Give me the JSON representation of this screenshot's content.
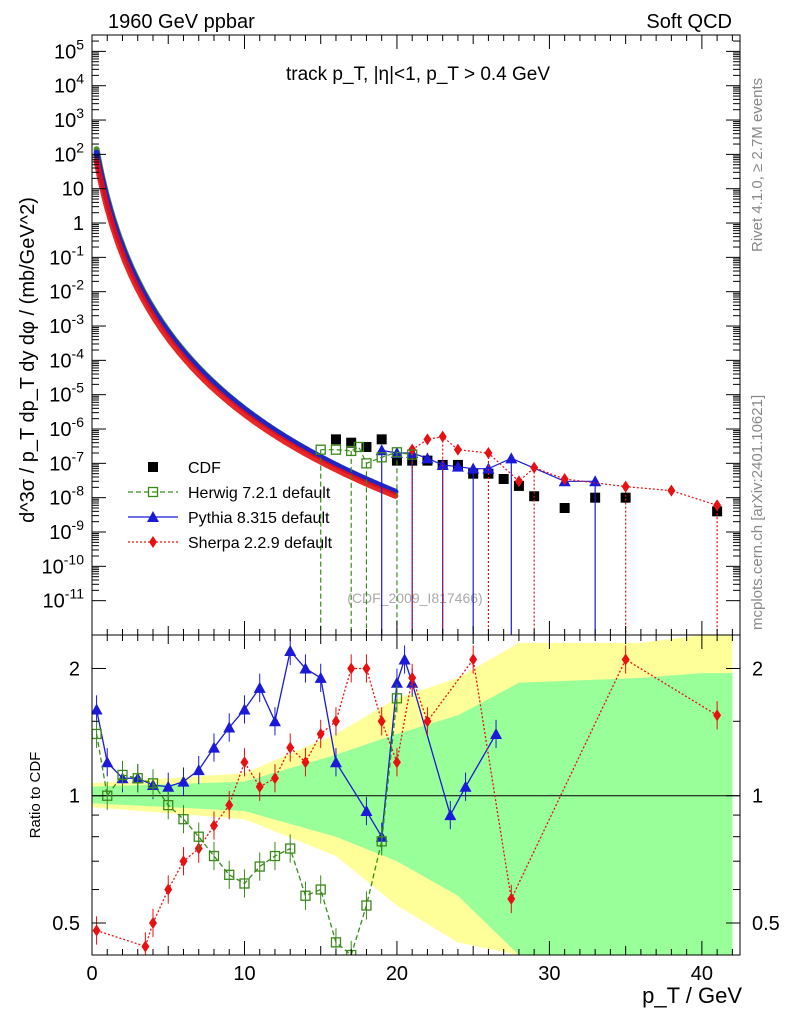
{
  "header": {
    "left": "1960 GeV ppbar",
    "right": "Soft QCD"
  },
  "side_labels": {
    "rivet": "Rivet 4.1.0, ≥ 2.7M events",
    "site": "mcplots.cern.ch [arXiv:2401.10621]"
  },
  "watermark": "(CDF_2009_I817466)",
  "chart_data": [
    {
      "type": "scatter",
      "title": "track p_T, |η|<1, p_T > 0.4 GeV",
      "xlabel": "p_T / GeV",
      "ylabel": "d^3σ / p_T dp_T dy dφ / (mb/GeV^2)",
      "xlim": [
        0,
        42.5
      ],
      "ylim": [
        1e-12,
        300000.0
      ],
      "yscale": "log",
      "ytick_labels": [
        "10^5",
        "10^4",
        "10^3",
        "10^2",
        "10",
        "1",
        "10^-1",
        "10^-2",
        "10^-3",
        "10^-4",
        "10^-5",
        "10^-6",
        "10^-7",
        "10^-8",
        "10^-9",
        "10^-10",
        "10^-11"
      ],
      "legend": [
        {
          "name": "CDF",
          "color": "#000000",
          "marker": "square-filled"
        },
        {
          "name": "Herwig 7.2.1 default",
          "color": "#3a8a1a",
          "marker": "square-open",
          "line": "dashed"
        },
        {
          "name": "Pythia 8.315 default",
          "color": "#1a1ad8",
          "marker": "triangle",
          "line": "solid"
        },
        {
          "name": "Sherpa 2.2.9 default",
          "color": "#e81010",
          "marker": "diamond",
          "line": "dotted"
        }
      ],
      "series": [
        {
          "name": "CDF",
          "x": [
            16,
            17,
            18,
            19,
            20,
            21,
            22,
            23,
            24,
            25,
            26,
            27,
            28,
            29,
            31,
            33,
            35,
            41
          ],
          "y": [
            5e-07,
            4e-07,
            3e-07,
            5e-07,
            1.2e-07,
            1.2e-07,
            1.2e-07,
            9e-08,
            9e-08,
            5e-08,
            5e-08,
            3.5e-08,
            2.2e-08,
            1.1e-08,
            5e-09,
            1e-08,
            1e-08,
            4e-09
          ]
        },
        {
          "name": "Pythia 8.315 default",
          "x": [
            19,
            20,
            21,
            22,
            23,
            24,
            25,
            26,
            27.5,
            31,
            33
          ],
          "y": [
            2.4e-07,
            2e-07,
            2e-07,
            1.4e-07,
            9e-08,
            8e-08,
            7e-08,
            7e-08,
            1.4e-07,
            3e-08,
            3e-08
          ]
        },
        {
          "name": "Sherpa 2.2.9 default",
          "x": [
            21,
            22,
            23,
            24,
            26,
            28,
            29,
            31,
            35,
            38,
            41
          ],
          "y": [
            2.5e-07,
            5e-07,
            6e-07,
            2.5e-07,
            2e-07,
            3e-08,
            7.5e-08,
            3.5e-08,
            2.1e-08,
            1.6e-08,
            6e-09
          ]
        },
        {
          "name": "Herwig 7.2.1 default",
          "x": [
            15,
            16,
            17,
            17.5,
            18,
            19,
            20,
            21
          ],
          "y": [
            2.5e-07,
            2.5e-07,
            2.3e-07,
            3e-07,
            1e-07,
            1.5e-07,
            2.1e-07,
            1.8e-07
          ]
        }
      ]
    },
    {
      "type": "line",
      "ylabel": "Ratio to CDF",
      "xlim": [
        0,
        42.5
      ],
      "ylim": [
        0.42,
        2.4
      ],
      "yscale": "log",
      "ytick_labels": [
        "0.5",
        "1",
        "2"
      ],
      "xtick_labels": [
        "0",
        "10",
        "20",
        "30",
        "40"
      ],
      "reference": 1,
      "uncertainty_band_green": [
        [
          0,
          0.96,
          1.05
        ],
        [
          10,
          0.92,
          1.08
        ],
        [
          16,
          0.8,
          1.25
        ],
        [
          20,
          0.7,
          1.4
        ],
        [
          24,
          0.58,
          1.55
        ],
        [
          28,
          0.42,
          1.85
        ],
        [
          36,
          0.42,
          1.9
        ],
        [
          40,
          0.42,
          1.95
        ],
        [
          42,
          0.42,
          1.95
        ]
      ],
      "uncertainty_band_yellow": [
        [
          0,
          0.94,
          1.07
        ],
        [
          10,
          0.88,
          1.13
        ],
        [
          16,
          0.72,
          1.4
        ],
        [
          20,
          0.55,
          1.7
        ],
        [
          24,
          0.45,
          1.9
        ],
        [
          28,
          0.42,
          2.3
        ],
        [
          36,
          0.42,
          2.3
        ],
        [
          40,
          0.42,
          2.4
        ],
        [
          42,
          0.42,
          2.4
        ]
      ],
      "series": [
        {
          "name": "Pythia 8.315 default",
          "x": [
            0.3,
            1,
            2,
            3,
            4,
            5,
            6,
            7,
            8,
            9,
            10,
            11,
            12,
            13,
            14,
            15,
            16,
            18,
            19,
            20,
            20.5,
            21,
            23.5,
            24.5,
            26.5
          ],
          "y": [
            1.6,
            1.2,
            1.1,
            1.1,
            1.06,
            1.05,
            1.08,
            1.15,
            1.3,
            1.45,
            1.6,
            1.8,
            1.5,
            2.2,
            2.0,
            1.9,
            1.2,
            0.92,
            0.8,
            1.85,
            2.1,
            1.85,
            0.9,
            1.05,
            1.4
          ]
        },
        {
          "name": "Sherpa 2.2.9 default",
          "x": [
            0.3,
            3.5,
            4,
            5,
            6,
            7,
            8,
            9,
            10,
            11,
            12,
            13,
            14,
            15,
            16,
            17,
            18,
            19,
            20,
            21,
            22,
            25,
            27.5,
            35,
            41
          ],
          "y": [
            0.48,
            0.44,
            0.5,
            0.6,
            0.7,
            0.75,
            0.85,
            0.95,
            1.2,
            1.05,
            1.1,
            1.3,
            1.2,
            1.4,
            1.5,
            2.0,
            2.0,
            1.5,
            1.2,
            1.9,
            1.5,
            2.1,
            0.57,
            2.1,
            1.55
          ]
        },
        {
          "name": "Herwig 7.2.1 default",
          "x": [
            0.3,
            1,
            2,
            3,
            4,
            5,
            6,
            7,
            8,
            9,
            10,
            11,
            12,
            13,
            14,
            15,
            16,
            17,
            18,
            19,
            20
          ],
          "y": [
            1.4,
            1.0,
            1.12,
            1.1,
            1.07,
            0.95,
            0.88,
            0.8,
            0.72,
            0.65,
            0.62,
            0.68,
            0.72,
            0.75,
            0.58,
            0.6,
            0.45,
            0.42,
            0.55,
            0.78,
            1.7
          ]
        }
      ]
    }
  ]
}
